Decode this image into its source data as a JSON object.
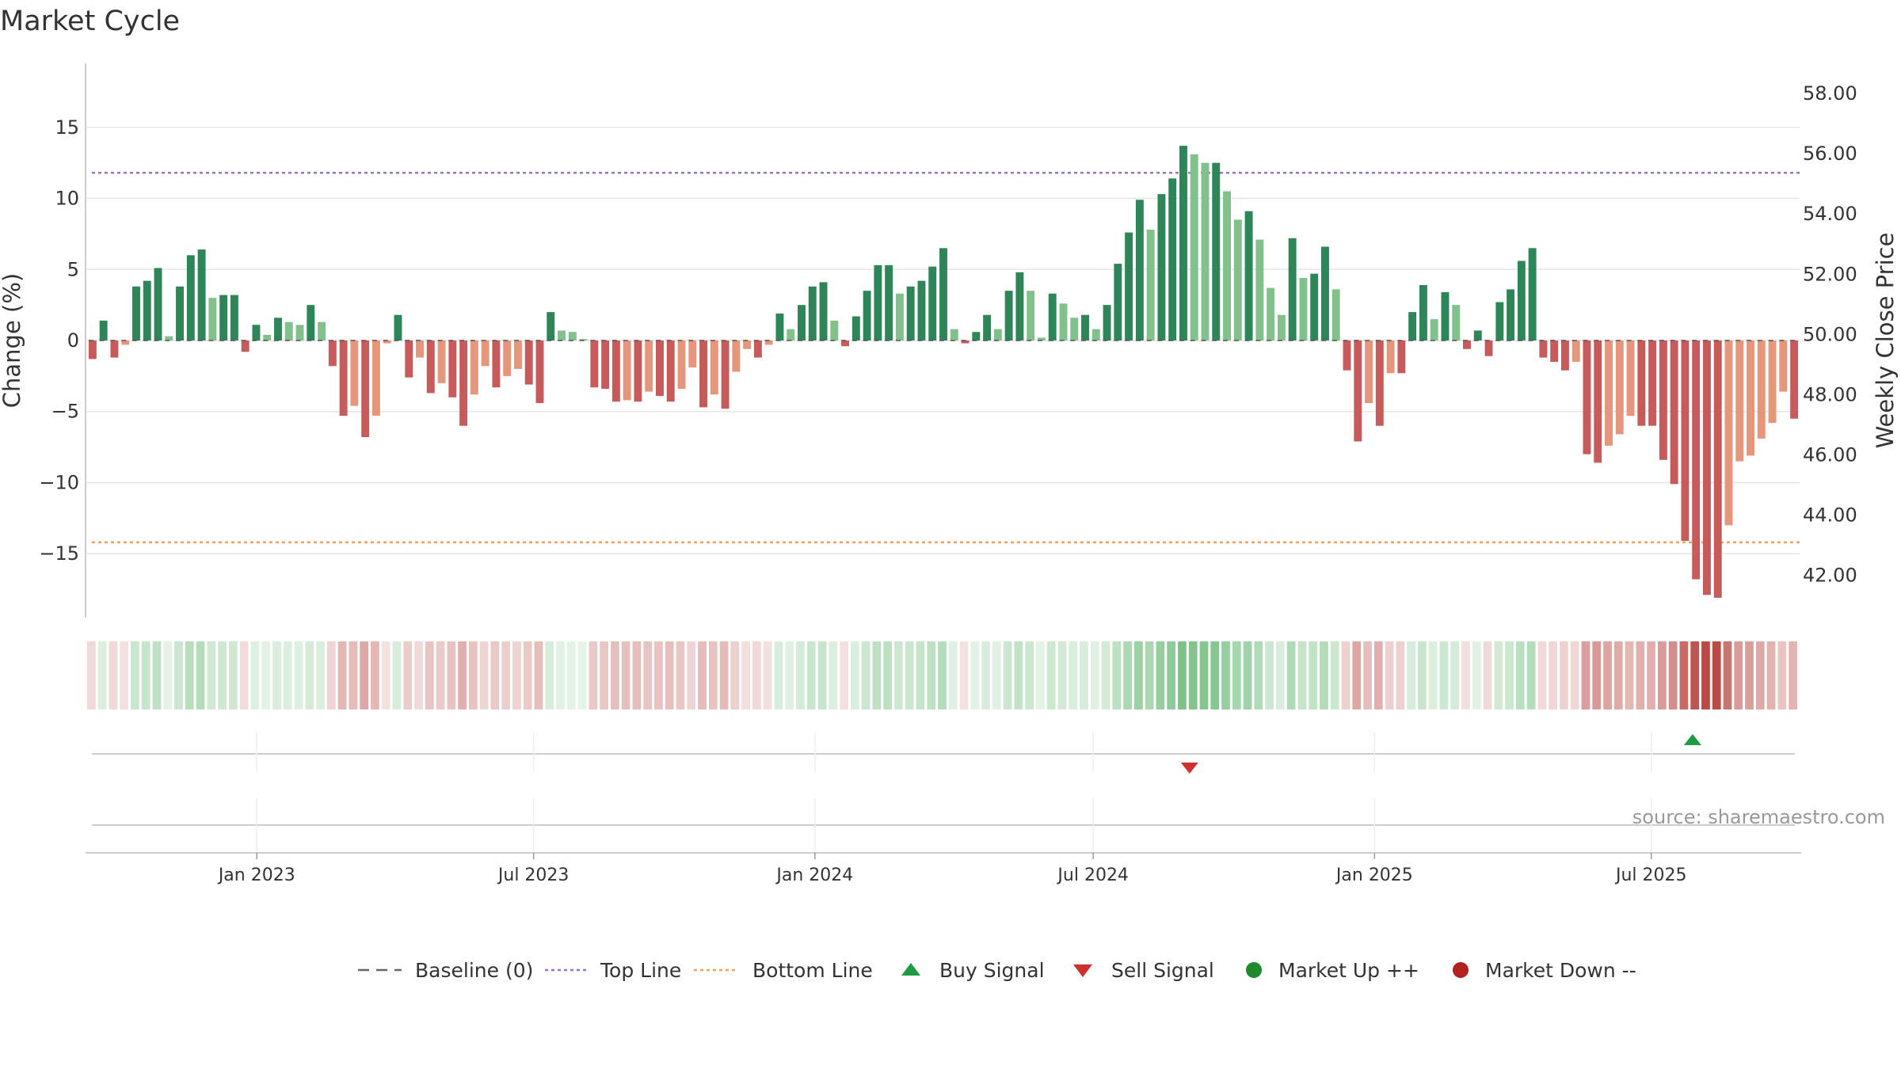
{
  "chart_data": {
    "type": "bar",
    "title": "Market Cycle",
    "ylabel_left": "Change (%)",
    "ylabel_right": "Weekly Close Price",
    "source": "source: sharemaestro.com",
    "left_axis": {
      "range": [
        -19.5,
        19.5
      ],
      "ticks": [
        15,
        10,
        5,
        0,
        -5,
        -10,
        -15
      ],
      "tick_labels": [
        "15",
        "10",
        "5",
        "0",
        "−5",
        "−10",
        "−15"
      ]
    },
    "right_axis": {
      "range": [
        40.6,
        59.0
      ],
      "ticks": [
        58,
        56,
        54,
        52,
        50,
        48,
        46,
        44,
        42
      ],
      "tick_labels": [
        "58.00",
        "56.00",
        "54.00",
        "52.00",
        "50.00",
        "48.00",
        "46.00",
        "44.00",
        "42.00"
      ]
    },
    "top_line": 11.8,
    "bottom_line": -14.2,
    "date_range": [
      "2022-09-12",
      "2025-10-06"
    ],
    "date_ticks": [
      {
        "label": "Jan 2023",
        "date": "2023-01-01"
      },
      {
        "label": "Jul 2023",
        "date": "2023-07-01"
      },
      {
        "label": "Jan 2024",
        "date": "2024-01-01"
      },
      {
        "label": "Jul 2024",
        "date": "2024-07-01"
      },
      {
        "label": "Jan 2025",
        "date": "2025-01-01"
      },
      {
        "label": "Jul 2025",
        "date": "2025-07-01"
      }
    ],
    "series": [
      {
        "name": "Change (%)",
        "start_date": "2022-09-12",
        "interval": "weekly",
        "values": [
          -1.3,
          1.4,
          -1.2,
          -0.3,
          3.8,
          4.2,
          5.1,
          0.3,
          3.8,
          6.0,
          6.4,
          3.0,
          3.2,
          3.2,
          -0.8,
          1.1,
          0.4,
          1.6,
          1.3,
          1.1,
          2.5,
          1.3,
          -1.8,
          -5.3,
          -4.6,
          -6.8,
          -5.3,
          -0.2,
          1.8,
          -2.6,
          -1.2,
          -3.7,
          -3.0,
          -4.0,
          -6.0,
          -3.8,
          -1.8,
          -3.3,
          -2.5,
          -2.0,
          -3.1,
          -4.4,
          2.0,
          0.7,
          0.6,
          0.1,
          -3.3,
          -3.4,
          -4.3,
          -4.2,
          -4.3,
          -3.6,
          -3.9,
          -4.3,
          -3.4,
          -1.9,
          -4.7,
          -3.8,
          -4.8,
          -2.2,
          -0.6,
          -1.2,
          -0.3,
          1.9,
          0.8,
          2.5,
          3.8,
          4.1,
          1.4,
          -0.4,
          1.7,
          3.5,
          5.3,
          5.3,
          3.3,
          3.8,
          4.2,
          5.2,
          6.5,
          0.8,
          -0.2,
          0.6,
          1.8,
          0.8,
          3.5,
          4.8,
          3.5,
          0.2,
          3.3,
          2.6,
          1.6,
          1.8,
          0.8,
          2.5,
          5.4,
          7.6,
          9.9,
          7.8,
          10.3,
          11.4,
          13.7,
          13.1,
          12.5,
          12.5,
          10.5,
          8.5,
          9.1,
          7.1,
          3.7,
          1.8,
          7.2,
          4.4,
          4.7,
          6.6,
          3.6,
          -2.1,
          -7.1,
          -4.4,
          -6.0,
          -2.3,
          -2.3,
          2.0,
          3.9,
          1.5,
          3.4,
          2.5,
          -0.6,
          0.7,
          -1.1,
          2.7,
          3.6,
          5.6,
          6.5,
          -1.2,
          -1.5,
          -2.1,
          -1.5,
          -8.0,
          -8.6,
          -7.4,
          -6.6,
          -5.3,
          -6.0,
          -6.0,
          -8.4,
          -10.1,
          -14.1,
          -16.8,
          -17.9,
          -18.1,
          -13.0,
          -8.5,
          -8.1,
          -6.9,
          -5.8,
          -3.6,
          -5.5
        ]
      },
      {
        "name": "Weekly Close Price",
        "values": []
      },
      {
        "name": "Market Up ++",
        "points": []
      },
      {
        "name": "Market Down --",
        "points": []
      }
    ],
    "signals": [
      {
        "type": "Sell Signal",
        "date": "2024-09-02"
      },
      {
        "type": "Buy Signal",
        "date": "2025-07-28"
      }
    ],
    "legend": {
      "position": "bottom",
      "items": [
        {
          "label": "Baseline (0)",
          "style": "dashed-line",
          "color": "#666666"
        },
        {
          "label": "Top Line",
          "style": "dotted-line",
          "color": "#9a6fd0"
        },
        {
          "label": "Bottom Line",
          "style": "dotted-line",
          "color": "#f2a15c"
        },
        {
          "label": "Buy Signal",
          "style": "triangle-up",
          "color": "#1e9c44"
        },
        {
          "label": "Sell Signal",
          "style": "triangle-down",
          "color": "#d03030"
        },
        {
          "label": "Market Up ++",
          "style": "circle",
          "color": "#1f8a2c"
        },
        {
          "label": "Market Down --",
          "style": "circle",
          "color": "#b22222"
        }
      ]
    },
    "colors": {
      "up_strong": "#2e8558",
      "up_weak": "#82c08c",
      "down_strong": "#c75a5a",
      "down_weak": "#e6967a",
      "heat_up": "#5cb46a",
      "heat_down": "#b94a44",
      "grid": "#e6e6e6"
    },
    "grid": true
  }
}
